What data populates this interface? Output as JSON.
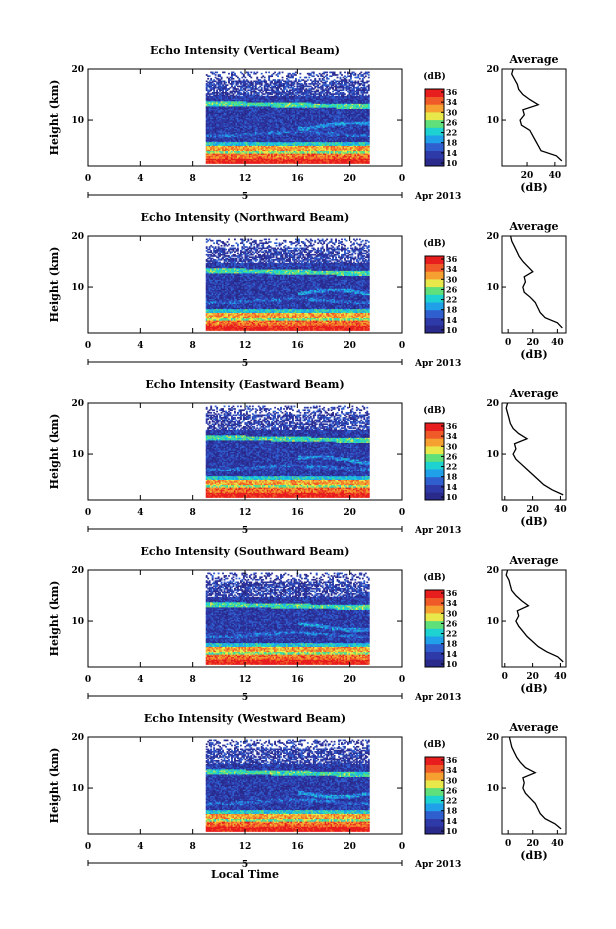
{
  "figure": {
    "title_prefix": "Echo Intensity",
    "xlabel": "Local Time",
    "date_label": "Apr 2013",
    "day_label": "5",
    "ylabel": "Height (km)",
    "colorbar_unit": "(dB)",
    "colorbar_ticks": [
      "36",
      "34",
      "30",
      "26",
      "22",
      "18",
      "14",
      "10"
    ],
    "colorbar_colors": [
      "#2a2a8c",
      "#2e3aa8",
      "#2f5fcf",
      "#1fa0e8",
      "#1fd2d2",
      "#5fe07a",
      "#e8e84a",
      "#f5a030",
      "#f05a28",
      "#e81e1e"
    ],
    "background_colormap": "#ffffff",
    "avg_title": "Average",
    "avg_xlabel": "(dB)"
  },
  "chart_data": [
    {
      "type": "heatmap",
      "title": "Echo Intensity (Vertical Beam)",
      "xlabel": "Local Time",
      "ylabel": "Height (km)",
      "x_ticks": [
        "0",
        "4",
        "8",
        "12",
        "16",
        "20",
        "0"
      ],
      "xlim": [
        0,
        24
      ],
      "y_ticks": [
        "10",
        "20"
      ],
      "ylim": [
        1,
        20
      ],
      "data_x_range": [
        9,
        21.5
      ],
      "data_y_range": [
        1.5,
        19.5
      ],
      "colorbar": {
        "label": "(dB)",
        "range": [
          10,
          38
        ]
      },
      "average_profile": {
        "title": "Average",
        "xlabel": "(dB)",
        "x_ticks": [
          "20",
          "40"
        ],
        "xlim": [
          2,
          48
        ],
        "height": [
          2,
          3,
          4,
          5,
          6,
          7,
          8,
          9,
          10,
          11,
          12,
          13,
          14,
          15,
          16,
          17,
          18,
          19,
          20
        ],
        "value": [
          45,
          41,
          30,
          28,
          26,
          24,
          22,
          16,
          15,
          18,
          17,
          28,
          22,
          17,
          14,
          13,
          11,
          9,
          10
        ]
      }
    },
    {
      "type": "heatmap",
      "title": "Echo Intensity (Northward Beam)",
      "xlabel": "Local Time",
      "ylabel": "Height (km)",
      "x_ticks": [
        "0",
        "4",
        "8",
        "12",
        "16",
        "20",
        "0"
      ],
      "xlim": [
        0,
        24
      ],
      "y_ticks": [
        "10",
        "20"
      ],
      "ylim": [
        1,
        20
      ],
      "data_x_range": [
        9,
        21.5
      ],
      "data_y_range": [
        1.5,
        19.5
      ],
      "colorbar": {
        "label": "(dB)",
        "range": [
          10,
          38
        ]
      },
      "average_profile": {
        "title": "Average",
        "xlabel": "(dB)",
        "x_ticks": [
          "0",
          "20",
          "40"
        ],
        "xlim": [
          -5,
          47
        ],
        "height": [
          2,
          3,
          4,
          5,
          6,
          7,
          8,
          9,
          10,
          11,
          12,
          13,
          14,
          15,
          16,
          17,
          18,
          19,
          20
        ],
        "value": [
          44,
          40,
          30,
          26,
          24,
          22,
          18,
          13,
          12,
          14,
          13,
          20,
          16,
          12,
          9,
          7,
          5,
          3,
          2
        ]
      }
    },
    {
      "type": "heatmap",
      "title": "Echo Intensity (Eastward Beam)",
      "xlabel": "Local Time",
      "ylabel": "Height (km)",
      "x_ticks": [
        "0",
        "4",
        "8",
        "12",
        "16",
        "20",
        "0"
      ],
      "xlim": [
        0,
        24
      ],
      "y_ticks": [
        "10",
        "20"
      ],
      "ylim": [
        1,
        20
      ],
      "data_x_range": [
        9,
        21.5
      ],
      "data_y_range": [
        1.5,
        19.5
      ],
      "colorbar": {
        "label": "(dB)",
        "range": [
          10,
          38
        ]
      },
      "average_profile": {
        "title": "Average",
        "xlabel": "(dB)",
        "x_ticks": [
          "0",
          "20",
          "40"
        ],
        "xlim": [
          -2,
          44
        ],
        "height": [
          2,
          3,
          4,
          5,
          6,
          7,
          8,
          9,
          10,
          11,
          12,
          13,
          14,
          15,
          16,
          17,
          18,
          19,
          20
        ],
        "value": [
          42,
          34,
          28,
          24,
          20,
          16,
          12,
          8,
          6,
          8,
          7,
          16,
          10,
          6,
          4,
          3,
          2,
          1,
          2
        ]
      }
    },
    {
      "type": "heatmap",
      "title": "Echo Intensity (Southward Beam)",
      "xlabel": "Local Time",
      "ylabel": "Height (km)",
      "x_ticks": [
        "0",
        "4",
        "8",
        "12",
        "16",
        "20",
        "0"
      ],
      "xlim": [
        0,
        24
      ],
      "y_ticks": [
        "10",
        "20"
      ],
      "ylim": [
        1,
        20
      ],
      "data_x_range": [
        9,
        21.5
      ],
      "data_y_range": [
        1.5,
        19.5
      ],
      "colorbar": {
        "label": "(dB)",
        "range": [
          10,
          38
        ]
      },
      "average_profile": {
        "title": "Average",
        "xlabel": "(dB)",
        "x_ticks": [
          "0",
          "20",
          "40"
        ],
        "xlim": [
          -2,
          44
        ],
        "height": [
          2,
          3,
          4,
          5,
          6,
          7,
          8,
          9,
          10,
          11,
          12,
          13,
          14,
          15,
          16,
          17,
          18,
          19,
          20
        ],
        "value": [
          42,
          38,
          30,
          24,
          20,
          16,
          13,
          10,
          8,
          10,
          9,
          17,
          12,
          8,
          5,
          4,
          3,
          1,
          2
        ]
      }
    },
    {
      "type": "heatmap",
      "title": "Echo Intensity (Westward Beam)",
      "xlabel": "Local Time",
      "ylabel": "Height (km)",
      "x_ticks": [
        "0",
        "4",
        "8",
        "12",
        "16",
        "20",
        "0"
      ],
      "xlim": [
        0,
        24
      ],
      "y_ticks": [
        "10",
        "20"
      ],
      "ylim": [
        1,
        20
      ],
      "data_x_range": [
        9,
        21.5
      ],
      "data_y_range": [
        1.5,
        19.5
      ],
      "colorbar": {
        "label": "(dB)",
        "range": [
          10,
          38
        ]
      },
      "average_profile": {
        "title": "Average",
        "xlabel": "(dB)",
        "x_ticks": [
          "0",
          "20",
          "40"
        ],
        "xlim": [
          -5,
          47
        ],
        "height": [
          2,
          3,
          4,
          5,
          6,
          7,
          8,
          9,
          10,
          11,
          12,
          13,
          14,
          15,
          16,
          17,
          18,
          19,
          20
        ],
        "value": [
          43,
          38,
          30,
          26,
          24,
          22,
          18,
          14,
          12,
          13,
          12,
          22,
          14,
          10,
          7,
          5,
          3,
          2,
          1
        ]
      }
    }
  ]
}
